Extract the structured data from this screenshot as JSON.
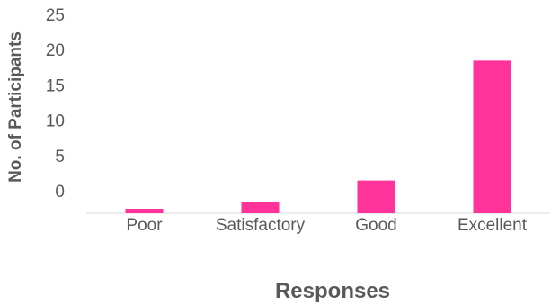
{
  "chart_data": {
    "type": "bar",
    "categories": [
      "Poor",
      "Satisfactory",
      "Good",
      "Excellent"
    ],
    "values": [
      0,
      1,
      4,
      21
    ],
    "xlabel": "Responses",
    "ylabel": "No. of Participants",
    "yticks": [
      0,
      5,
      10,
      15,
      20,
      25
    ],
    "ylim": [
      0,
      25
    ],
    "grid": false,
    "bar_color": "#FF3399",
    "axis_color": "#D9D9D9",
    "text_color": "#595959"
  }
}
